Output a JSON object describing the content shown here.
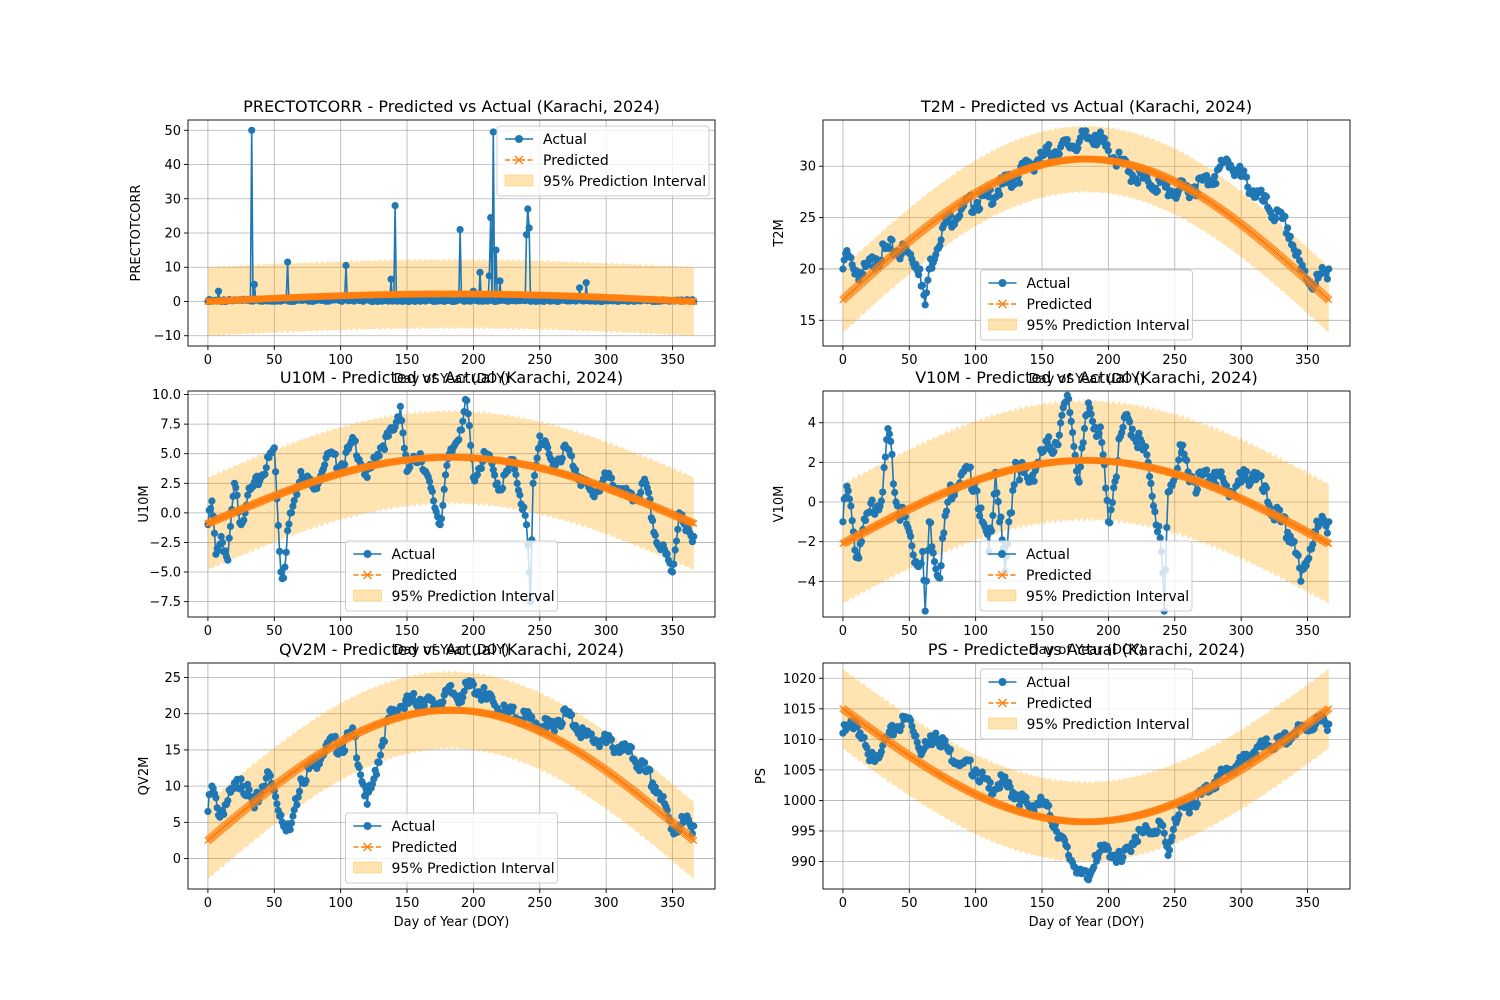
{
  "colors": {
    "actual": "#1f77b4",
    "predicted": "#ff7f0e",
    "interval": "#ffa500",
    "grid": "#b0b0b0"
  },
  "chart_data": [
    {
      "type": "line",
      "title": "PRECTOTCORR - Predicted vs Actual (Karachi, 2024)",
      "xlabel": "Day of Year (DOY)",
      "ylabel": "PRECTOTCORR",
      "xlim": [
        -15,
        382
      ],
      "ylim": [
        -13,
        53
      ],
      "xticks": [
        0,
        50,
        100,
        150,
        200,
        250,
        300,
        350
      ],
      "yticks": [
        -10,
        0,
        10,
        20,
        30,
        40,
        50
      ],
      "legend": "upper right",
      "grid": true,
      "legend_labels": [
        "Actual",
        "Predicted",
        "95% Prediction Interval"
      ],
      "model": {
        "baseline": 0.0,
        "amplitude": 2.2,
        "pi_half_width": 10.0
      },
      "actual_points": [
        [
          0,
          0
        ],
        [
          8,
          3
        ],
        [
          20,
          0.5
        ],
        [
          33,
          50
        ],
        [
          35,
          5
        ],
        [
          45,
          0.3
        ],
        [
          60,
          11.5
        ],
        [
          70,
          1
        ],
        [
          104,
          10.5
        ],
        [
          120,
          0.5
        ],
        [
          138,
          6.5
        ],
        [
          141,
          28
        ],
        [
          165,
          1
        ],
        [
          190,
          21
        ],
        [
          200,
          3
        ],
        [
          205,
          8.5
        ],
        [
          212,
          7.5
        ],
        [
          213,
          24.5
        ],
        [
          215,
          49.5
        ],
        [
          217,
          15
        ],
        [
          220,
          6
        ],
        [
          240,
          19.5
        ],
        [
          241,
          27
        ],
        [
          242,
          21.5
        ],
        [
          255,
          1
        ],
        [
          280,
          4
        ],
        [
          285,
          5.5
        ],
        [
          300,
          0.5
        ],
        [
          320,
          0.3
        ],
        [
          366,
          0
        ]
      ]
    },
    {
      "type": "line",
      "title": "T2M - Predicted vs Actual (Karachi, 2024)",
      "xlabel": "Day of Year (DOY)",
      "ylabel": "T2M",
      "xlim": [
        -15,
        382
      ],
      "ylim": [
        12.5,
        34.5
      ],
      "xticks": [
        0,
        50,
        100,
        150,
        200,
        250,
        300,
        350
      ],
      "yticks": [
        15,
        20,
        25,
        30
      ],
      "legend": "lower center",
      "grid": true,
      "legend_labels": [
        "Actual",
        "Predicted",
        "95% Prediction Interval"
      ],
      "model": {
        "baseline": 17.0,
        "amplitude": 13.7,
        "pi_half_width": 3.2
      },
      "actual_points": [
        [
          2,
          21.5
        ],
        [
          8,
          20
        ],
        [
          15,
          19.5
        ],
        [
          25,
          21
        ],
        [
          35,
          22
        ],
        [
          50,
          21.5
        ],
        [
          58,
          20
        ],
        [
          62,
          16.5
        ],
        [
          65,
          20
        ],
        [
          75,
          24
        ],
        [
          90,
          26
        ],
        [
          110,
          27
        ],
        [
          130,
          29
        ],
        [
          150,
          31
        ],
        [
          170,
          32
        ],
        [
          190,
          33
        ],
        [
          200,
          31.5
        ],
        [
          215,
          29.5
        ],
        [
          230,
          28.5
        ],
        [
          250,
          27.5
        ],
        [
          265,
          28
        ],
        [
          280,
          29
        ],
        [
          290,
          30.5
        ],
        [
          300,
          29
        ],
        [
          320,
          26
        ],
        [
          335,
          24
        ],
        [
          345,
          20
        ],
        [
          355,
          18.5
        ],
        [
          366,
          20
        ]
      ]
    },
    {
      "type": "line",
      "title": "U10M - Predicted vs Actual (Karachi, 2024)",
      "xlabel": "Day of Year (DOY)",
      "ylabel": "U10M",
      "xlim": [
        -15,
        382
      ],
      "ylim": [
        -8.8,
        10.3
      ],
      "xticks": [
        0,
        50,
        100,
        150,
        200,
        250,
        300,
        350
      ],
      "yticks": [
        -7.5,
        -5.0,
        -2.5,
        0.0,
        2.5,
        5.0,
        7.5,
        10.0
      ],
      "legend": "lower center",
      "grid": true,
      "legend_labels": [
        "Actual",
        "Predicted",
        "95% Prediction Interval"
      ],
      "model": {
        "baseline": -0.9,
        "amplitude": 5.6,
        "pi_half_width": 3.9
      },
      "actual_points": [
        [
          0,
          -1
        ],
        [
          3,
          1
        ],
        [
          6,
          -3.5
        ],
        [
          10,
          -2
        ],
        [
          15,
          -4
        ],
        [
          20,
          2.5
        ],
        [
          25,
          -1
        ],
        [
          30,
          1.5
        ],
        [
          40,
          3
        ],
        [
          50,
          5.5
        ],
        [
          55,
          -5
        ],
        [
          57,
          -5.5
        ],
        [
          60,
          -1.5
        ],
        [
          70,
          3.5
        ],
        [
          80,
          2
        ],
        [
          90,
          5
        ],
        [
          100,
          4
        ],
        [
          110,
          6
        ],
        [
          120,
          3
        ],
        [
          130,
          5.5
        ],
        [
          140,
          7
        ],
        [
          145,
          9
        ],
        [
          150,
          3.5
        ],
        [
          160,
          5
        ],
        [
          175,
          -1
        ],
        [
          180,
          4
        ],
        [
          190,
          7
        ],
        [
          195,
          9.5
        ],
        [
          200,
          3
        ],
        [
          210,
          5
        ],
        [
          220,
          2
        ],
        [
          230,
          4.5
        ],
        [
          240,
          -1
        ],
        [
          243,
          -7.5
        ],
        [
          245,
          2.5
        ],
        [
          250,
          6.5
        ],
        [
          260,
          4
        ],
        [
          270,
          5.5
        ],
        [
          280,
          3
        ],
        [
          290,
          1.5
        ],
        [
          300,
          3
        ],
        [
          310,
          2
        ],
        [
          320,
          1
        ],
        [
          330,
          2.5
        ],
        [
          338,
          -2.5
        ],
        [
          345,
          -3.5
        ],
        [
          350,
          -5
        ],
        [
          355,
          0
        ],
        [
          360,
          -1.5
        ],
        [
          366,
          -2
        ]
      ]
    },
    {
      "type": "line",
      "title": "V10M - Predicted vs Actual (Karachi, 2024)",
      "xlabel": "Day of Year (DOY)",
      "ylabel": "V10M",
      "xlim": [
        -15,
        382
      ],
      "ylim": [
        -5.8,
        5.6
      ],
      "xticks": [
        0,
        50,
        100,
        150,
        200,
        250,
        300,
        350
      ],
      "yticks": [
        -4,
        -2,
        0,
        2,
        4
      ],
      "legend": "lower right",
      "grid": true,
      "legend_labels": [
        "Actual",
        "Predicted",
        "95% Prediction Interval"
      ],
      "model": {
        "baseline": -2.1,
        "amplitude": 4.2,
        "pi_half_width": 3.0
      },
      "actual_points": [
        [
          0,
          -1
        ],
        [
          3,
          0.8
        ],
        [
          8,
          -1.5
        ],
        [
          10,
          -2.8
        ],
        [
          20,
          -0.5
        ],
        [
          30,
          0.5
        ],
        [
          34,
          3.7
        ],
        [
          40,
          0
        ],
        [
          50,
          -1.5
        ],
        [
          55,
          -3
        ],
        [
          60,
          -2.5
        ],
        [
          62,
          -5.5
        ],
        [
          65,
          -1
        ],
        [
          72,
          -3.8
        ],
        [
          80,
          0.5
        ],
        [
          90,
          1.5
        ],
        [
          100,
          1
        ],
        [
          105,
          -1
        ],
        [
          110,
          -2.5
        ],
        [
          115,
          1.5
        ],
        [
          122,
          -3.5
        ],
        [
          130,
          2
        ],
        [
          140,
          1
        ],
        [
          150,
          2.5
        ],
        [
          160,
          3
        ],
        [
          170,
          5.2
        ],
        [
          178,
          1
        ],
        [
          185,
          5
        ],
        [
          195,
          3
        ],
        [
          200,
          -1
        ],
        [
          210,
          3.5
        ],
        [
          215,
          4.2
        ],
        [
          230,
          2
        ],
        [
          240,
          -2.5
        ],
        [
          242,
          -5.5
        ],
        [
          245,
          0.5
        ],
        [
          255,
          2.5
        ],
        [
          265,
          1
        ],
        [
          280,
          1.5
        ],
        [
          290,
          0.5
        ],
        [
          300,
          1
        ],
        [
          310,
          1.5
        ],
        [
          320,
          0
        ],
        [
          330,
          -1
        ],
        [
          340,
          -2
        ],
        [
          345,
          -4
        ],
        [
          355,
          -1.5
        ],
        [
          366,
          -1
        ]
      ]
    },
    {
      "type": "line",
      "title": "QV2M - Predicted vs Actual (Karachi, 2024)",
      "xlabel": "Day of Year (DOY)",
      "ylabel": "QV2M",
      "xlim": [
        -15,
        382
      ],
      "ylim": [
        -4.2,
        27
      ],
      "xticks": [
        0,
        50,
        100,
        150,
        200,
        250,
        300,
        350
      ],
      "yticks": [
        0,
        5,
        10,
        15,
        20,
        25
      ],
      "legend": "lower center",
      "grid": true,
      "legend_labels": [
        "Actual",
        "Predicted",
        "95% Prediction Interval"
      ],
      "model": {
        "baseline": 2.5,
        "amplitude": 18.0,
        "pi_half_width": 5.3
      },
      "actual_points": [
        [
          0,
          6.5
        ],
        [
          3,
          10
        ],
        [
          8,
          6
        ],
        [
          15,
          8
        ],
        [
          25,
          11
        ],
        [
          35,
          7
        ],
        [
          45,
          12
        ],
        [
          55,
          6
        ],
        [
          62,
          4
        ],
        [
          70,
          11
        ],
        [
          80,
          13
        ],
        [
          90,
          16
        ],
        [
          100,
          15.5
        ],
        [
          110,
          17
        ],
        [
          120,
          7.5
        ],
        [
          125,
          11
        ],
        [
          135,
          19
        ],
        [
          145,
          21
        ],
        [
          160,
          22
        ],
        [
          170,
          21
        ],
        [
          180,
          23
        ],
        [
          190,
          22.5
        ],
        [
          200,
          24
        ],
        [
          210,
          22
        ],
        [
          225,
          20
        ],
        [
          240,
          19.5
        ],
        [
          255,
          18
        ],
        [
          270,
          20
        ],
        [
          285,
          17
        ],
        [
          300,
          16
        ],
        [
          315,
          15
        ],
        [
          330,
          12
        ],
        [
          340,
          9
        ],
        [
          350,
          4
        ],
        [
          358,
          5
        ],
        [
          366,
          4.5
        ]
      ]
    },
    {
      "type": "line",
      "title": "PS - Predicted vs Actual (Karachi, 2024)",
      "xlabel": "Day of Year (DOY)",
      "ylabel": "PS",
      "xlim": [
        -15,
        382
      ],
      "ylim": [
        985.5,
        1022.5
      ],
      "xticks": [
        0,
        50,
        100,
        150,
        200,
        250,
        300,
        350
      ],
      "yticks": [
        990,
        995,
        1000,
        1005,
        1010,
        1015,
        1020
      ],
      "legend": "upper center",
      "grid": true,
      "legend_labels": [
        "Actual",
        "Predicted",
        "95% Prediction Interval"
      ],
      "model": {
        "baseline": 1015.0,
        "amplitude": -18.5,
        "pi_half_width": 6.5
      },
      "actual_points": [
        [
          0,
          1011
        ],
        [
          5,
          1012
        ],
        [
          10,
          1013
        ],
        [
          20,
          1006.5
        ],
        [
          30,
          1009
        ],
        [
          40,
          1012
        ],
        [
          50,
          1013.5
        ],
        [
          60,
          1008
        ],
        [
          70,
          1011
        ],
        [
          80,
          1008
        ],
        [
          90,
          1006
        ],
        [
          100,
          1005
        ],
        [
          110,
          1002
        ],
        [
          120,
          1003
        ],
        [
          130,
          1001
        ],
        [
          140,
          999
        ],
        [
          150,
          1000
        ],
        [
          160,
          996
        ],
        [
          170,
          991
        ],
        [
          180,
          988
        ],
        [
          185,
          987
        ],
        [
          190,
          991
        ],
        [
          200,
          992
        ],
        [
          210,
          990
        ],
        [
          220,
          994
        ],
        [
          230,
          995
        ],
        [
          240,
          996
        ],
        [
          245,
          991
        ],
        [
          250,
          997
        ],
        [
          260,
          999
        ],
        [
          270,
          1001
        ],
        [
          280,
          1003
        ],
        [
          290,
          1005
        ],
        [
          300,
          1006
        ],
        [
          310,
          1008
        ],
        [
          320,
          1009
        ],
        [
          330,
          1009.5
        ],
        [
          340,
          1011
        ],
        [
          350,
          1012
        ],
        [
          360,
          1013
        ],
        [
          366,
          1012.5
        ]
      ]
    }
  ]
}
